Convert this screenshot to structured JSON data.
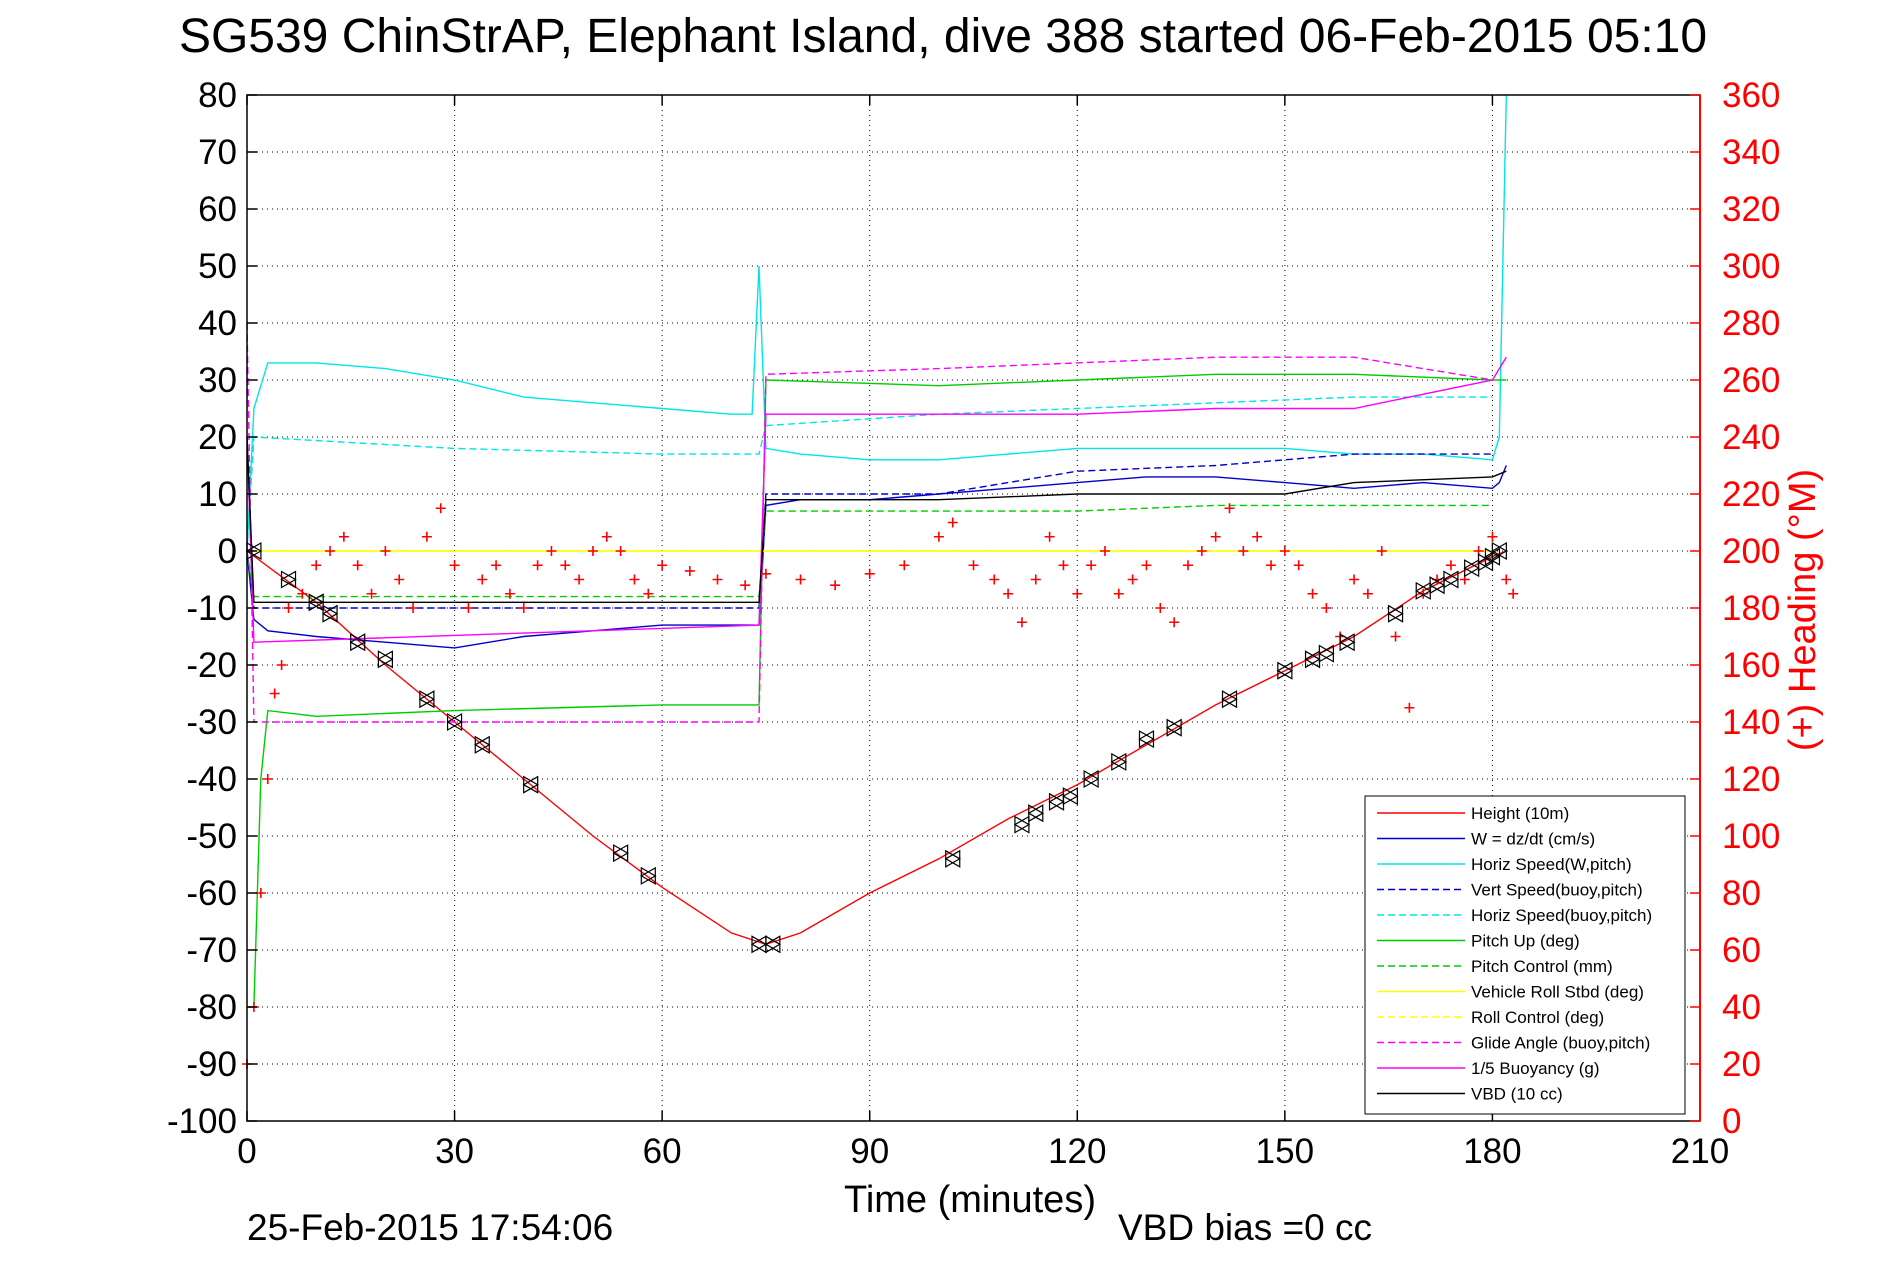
{
  "chart_data": {
    "type": "line",
    "title": "SG539 ChinStrAP, Elephant Island, dive 388 started 06-Feb-2015 05:10",
    "xlabel": "Time (minutes)",
    "ylabel": "",
    "y2label": "(+) Heading (°M)",
    "xlim": [
      0,
      210
    ],
    "ylim": [
      -100,
      80
    ],
    "y2lim": [
      0,
      360
    ],
    "x_ticks": [
      0,
      30,
      60,
      90,
      120,
      150,
      180,
      210
    ],
    "y_ticks": [
      80,
      70,
      60,
      50,
      40,
      30,
      20,
      10,
      0,
      -10,
      -20,
      -30,
      -40,
      -50,
      -60,
      -70,
      -80,
      -90,
      -100
    ],
    "y2_ticks": [
      360,
      340,
      320,
      300,
      280,
      260,
      240,
      220,
      200,
      180,
      160,
      140,
      120,
      100,
      80,
      60,
      40,
      20,
      0
    ],
    "grid": true,
    "legend_position": "bottom-right",
    "footer_left": "25-Feb-2015 17:54:06",
    "footer_right": "VBD bias =0 cc",
    "colors": {
      "red": "#ff0000",
      "blue": "#0000cc",
      "cyan": "#00e5e5",
      "green": "#00cc00",
      "yellow": "#ffff00",
      "magenta": "#ff00ff",
      "black": "#000000"
    },
    "series": [
      {
        "name": "Height (10m)",
        "color": "#ff0000",
        "style": "solid",
        "x": [
          0,
          10,
          20,
          30,
          40,
          50,
          60,
          70,
          75,
          80,
          90,
          100,
          110,
          120,
          130,
          140,
          150,
          160,
          170,
          180,
          182
        ],
        "y": [
          0,
          -9,
          -20,
          -30,
          -40,
          -50,
          -59,
          -67,
          -69,
          -67,
          -60,
          -54,
          -47,
          -41,
          -34,
          -27,
          -21,
          -15,
          -7,
          -1,
          0
        ]
      },
      {
        "name": "W = dz/dt (cm/s)",
        "color": "#0000cc",
        "style": "solid",
        "x": [
          0,
          1,
          3,
          10,
          20,
          30,
          40,
          50,
          60,
          70,
          74,
          75,
          80,
          90,
          100,
          110,
          120,
          130,
          140,
          150,
          160,
          170,
          180,
          181,
          182
        ],
        "y": [
          0,
          -12,
          -14,
          -15,
          -16,
          -17,
          -15,
          -14,
          -13,
          -13,
          -13,
          8,
          9,
          9,
          10,
          11,
          12,
          13,
          13,
          12,
          11,
          12,
          11,
          12,
          15
        ]
      },
      {
        "name": "Horiz Speed(W,pitch)",
        "color": "#00e5e5",
        "style": "solid",
        "x": [
          0,
          1,
          3,
          10,
          20,
          30,
          40,
          50,
          60,
          70,
          73,
          74,
          75,
          80,
          90,
          100,
          110,
          120,
          130,
          140,
          150,
          160,
          170,
          180,
          181,
          182
        ],
        "y": [
          0,
          25,
          33,
          33,
          32,
          30,
          27,
          26,
          25,
          24,
          24,
          50,
          18,
          17,
          16,
          16,
          17,
          18,
          18,
          18,
          18,
          17,
          17,
          16,
          20,
          80
        ]
      },
      {
        "name": "Vert Speed(buoy,pitch)",
        "color": "#0000cc",
        "style": "dashed",
        "x": [
          0,
          1,
          74,
          75,
          100,
          110,
          120,
          140,
          150,
          160,
          180
        ],
        "y": [
          0,
          -10,
          -10,
          10,
          10,
          12,
          14,
          15,
          16,
          17,
          17
        ]
      },
      {
        "name": "Horiz Speed(buoy,pitch)",
        "color": "#00e5e5",
        "style": "dashed",
        "x": [
          0,
          1,
          30,
          60,
          74,
          75,
          100,
          120,
          140,
          160,
          180
        ],
        "y": [
          0,
          20,
          18,
          17,
          17,
          22,
          24,
          25,
          26,
          27,
          27
        ]
      },
      {
        "name": "Pitch Up (deg)",
        "color": "#00cc00",
        "style": "solid",
        "x": [
          0,
          1,
          2,
          3,
          10,
          30,
          60,
          74,
          75,
          100,
          120,
          140,
          160,
          180,
          182
        ],
        "y": [
          -80,
          -80,
          -40,
          -28,
          -29,
          -28,
          -27,
          -27,
          30,
          29,
          30,
          31,
          31,
          30,
          30
        ]
      },
      {
        "name": "Pitch Control (mm)",
        "color": "#00cc00",
        "style": "dashed",
        "x": [
          0,
          1,
          74,
          75,
          100,
          120,
          140,
          160,
          180
        ],
        "y": [
          0,
          -8,
          -8,
          7,
          7,
          7,
          8,
          8,
          8
        ]
      },
      {
        "name": "Vehicle Roll Stbd (deg)",
        "color": "#ffff00",
        "style": "solid",
        "x": [
          0,
          10,
          20,
          30,
          40,
          50,
          60,
          70,
          80,
          90,
          100,
          110,
          120,
          130,
          140,
          150,
          160,
          170,
          180
        ],
        "y": [
          0,
          0,
          0,
          0,
          0,
          0,
          0,
          0,
          0,
          0,
          0,
          0,
          0,
          0,
          0,
          0,
          0,
          0,
          0
        ]
      },
      {
        "name": "Roll Control (deg)",
        "color": "#ffff00",
        "style": "dashed",
        "x": [
          0,
          10,
          20,
          30,
          40,
          50,
          60,
          70,
          80,
          90,
          100,
          110,
          120,
          130,
          140,
          150,
          160,
          170,
          180
        ],
        "y": [
          0,
          0,
          0,
          0,
          0,
          0,
          0,
          0,
          0,
          0,
          0,
          0,
          0,
          0,
          0,
          0,
          0,
          0,
          0
        ]
      },
      {
        "name": "Glide Angle (buoy,pitch)",
        "color": "#ff00ff",
        "style": "dashed",
        "x": [
          0,
          1,
          10,
          30,
          60,
          74,
          75,
          100,
          120,
          140,
          160,
          180
        ],
        "y": [
          40,
          -30,
          -30,
          -30,
          -30,
          -30,
          31,
          32,
          33,
          34,
          34,
          30
        ]
      },
      {
        "name": "1/5 Buoyancy (g)",
        "color": "#ff00ff",
        "style": "solid",
        "x": [
          0,
          1,
          74,
          75,
          100,
          120,
          140,
          160,
          180,
          182
        ],
        "y": [
          20,
          -16,
          -13,
          24,
          24,
          24,
          25,
          25,
          30,
          34
        ]
      },
      {
        "name": "VBD (10 cc)",
        "color": "#000000",
        "style": "solid",
        "x": [
          0,
          1,
          74,
          75,
          100,
          120,
          140,
          150,
          160,
          180,
          182
        ],
        "y": [
          20,
          -9,
          -9,
          9,
          9,
          10,
          10,
          10,
          12,
          13,
          14
        ]
      }
    ],
    "heading_series": {
      "name": "Heading (°M)",
      "color": "#ff0000",
      "marker": "+",
      "axis": "right",
      "x": [
        0,
        1,
        2,
        3,
        4,
        5,
        6,
        8,
        10,
        12,
        14,
        16,
        18,
        20,
        22,
        24,
        26,
        28,
        30,
        32,
        34,
        36,
        38,
        40,
        42,
        44,
        46,
        48,
        50,
        52,
        54,
        56,
        58,
        60,
        64,
        68,
        72,
        75,
        80,
        85,
        90,
        95,
        100,
        102,
        105,
        108,
        110,
        112,
        114,
        116,
        118,
        120,
        122,
        124,
        126,
        128,
        130,
        132,
        134,
        136,
        138,
        140,
        142,
        144,
        146,
        148,
        150,
        152,
        154,
        156,
        158,
        160,
        162,
        164,
        166,
        168,
        170,
        172,
        174,
        176,
        178,
        180,
        182,
        183
      ],
      "y": [
        20,
        40,
        80,
        120,
        150,
        160,
        180,
        185,
        195,
        200,
        205,
        195,
        185,
        200,
        190,
        180,
        205,
        215,
        195,
        180,
        190,
        195,
        185,
        180,
        195,
        200,
        195,
        190,
        200,
        205,
        200,
        190,
        185,
        195,
        193,
        190,
        188,
        192,
        190,
        188,
        192,
        195,
        205,
        210,
        195,
        190,
        185,
        175,
        190,
        205,
        195,
        185,
        195,
        200,
        185,
        190,
        195,
        180,
        175,
        195,
        200,
        205,
        215,
        200,
        205,
        195,
        200,
        195,
        185,
        180,
        170,
        190,
        185,
        200,
        170,
        145,
        185,
        190,
        195,
        190,
        200,
        205,
        190,
        185
      ]
    },
    "triangle_markers": {
      "x": [
        1,
        6,
        10,
        12,
        16,
        20,
        26,
        30,
        34,
        41,
        54,
        58,
        74,
        76,
        102,
        112,
        114,
        117,
        119,
        122,
        126,
        130,
        134,
        142,
        150,
        154,
        156,
        159,
        166,
        170,
        172,
        174,
        177,
        179,
        180,
        181
      ],
      "y": [
        0,
        -5,
        -9,
        -11,
        -16,
        -19,
        -26,
        -30,
        -34,
        -41,
        -53,
        -57,
        -69,
        -69,
        -54,
        -48,
        -46,
        -44,
        -43,
        -40,
        -37,
        -33,
        -31,
        -26,
        -21,
        -19,
        -18,
        -16,
        -11,
        -7,
        -6,
        -5,
        -3,
        -2,
        -1,
        0
      ]
    },
    "legend": [
      {
        "label": "Height (10m)",
        "color": "#ff0000",
        "style": "solid"
      },
      {
        "label": "W = dz/dt (cm/s)",
        "color": "#0000cc",
        "style": "solid"
      },
      {
        "label": "Horiz Speed(W,pitch)",
        "color": "#00e5e5",
        "style": "solid"
      },
      {
        "label": "Vert Speed(buoy,pitch)",
        "color": "#0000cc",
        "style": "dashed"
      },
      {
        "label": "Horiz Speed(buoy,pitch)",
        "color": "#00e5e5",
        "style": "dashed"
      },
      {
        "label": "Pitch Up (deg)",
        "color": "#00cc00",
        "style": "solid"
      },
      {
        "label": "Pitch Control (mm)",
        "color": "#00cc00",
        "style": "dashed"
      },
      {
        "label": "Vehicle Roll Stbd (deg)",
        "color": "#ffff00",
        "style": "solid"
      },
      {
        "label": "Roll Control (deg)",
        "color": "#ffff00",
        "style": "dashed"
      },
      {
        "label": "Glide Angle (buoy,pitch)",
        "color": "#ff00ff",
        "style": "dashed"
      },
      {
        "label": "1/5 Buoyancy (g)",
        "color": "#ff00ff",
        "style": "solid"
      },
      {
        "label": "VBD (10 cc)",
        "color": "#000000",
        "style": "solid"
      }
    ]
  }
}
